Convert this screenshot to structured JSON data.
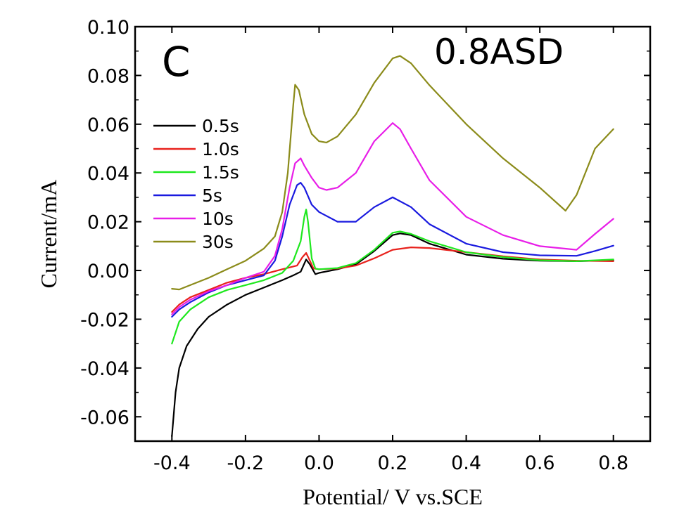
{
  "chart_data": {
    "type": "line",
    "panel_label": "C",
    "condition_label": "0.8ASD",
    "xlabel": "Potential/ V vs.SCE",
    "ylabel": "Current/mA",
    "xlim": [
      -0.5,
      0.9
    ],
    "ylim": [
      -0.07,
      0.1
    ],
    "xticks": [
      -0.4,
      -0.2,
      0.0,
      0.2,
      0.4,
      0.6,
      0.8
    ],
    "xtick_labels": [
      "-0.4",
      "-0.2",
      "0.0",
      "0.2",
      "0.4",
      "0.6",
      "0.8"
    ],
    "yticks": [
      -0.06,
      -0.04,
      -0.02,
      0.0,
      0.02,
      0.04,
      0.06,
      0.08,
      0.1
    ],
    "ytick_labels": [
      "-0.06",
      "-0.04",
      "-0.02",
      "0.00",
      "0.02",
      "0.04",
      "0.06",
      "0.08",
      "0.10"
    ],
    "legend_position": "left",
    "series": [
      {
        "name": "0.5s",
        "color": "#000000",
        "x": [
          -0.4,
          -0.39,
          -0.38,
          -0.36,
          -0.33,
          -0.3,
          -0.25,
          -0.2,
          -0.15,
          -0.1,
          -0.07,
          -0.05,
          -0.035,
          -0.025,
          -0.01,
          0.0,
          0.05,
          0.1,
          0.15,
          0.2,
          0.22,
          0.25,
          0.3,
          0.4,
          0.5,
          0.6,
          0.7,
          0.8
        ],
        "y": [
          -0.068,
          -0.05,
          -0.04,
          -0.031,
          -0.024,
          -0.019,
          -0.014,
          -0.01,
          -0.007,
          -0.004,
          -0.002,
          -0.0005,
          0.0045,
          0.0025,
          -0.0015,
          -0.001,
          0.0005,
          0.0025,
          0.008,
          0.0145,
          0.0152,
          0.0145,
          0.011,
          0.0065,
          0.0048,
          0.004,
          0.0038,
          0.0042
        ]
      },
      {
        "name": "1.0s",
        "color": "#e8211c",
        "x": [
          -0.4,
          -0.38,
          -0.35,
          -0.3,
          -0.25,
          -0.2,
          -0.15,
          -0.1,
          -0.06,
          -0.045,
          -0.035,
          -0.025,
          -0.015,
          0.0,
          0.05,
          0.1,
          0.15,
          0.2,
          0.25,
          0.3,
          0.4,
          0.5,
          0.6,
          0.7,
          0.8
        ],
        "y": [
          -0.017,
          -0.014,
          -0.011,
          -0.008,
          -0.005,
          -0.003,
          -0.0015,
          0.0005,
          0.002,
          0.0055,
          0.0072,
          0.004,
          0.0008,
          0.0005,
          0.0008,
          0.002,
          0.005,
          0.0085,
          0.0095,
          0.0092,
          0.0075,
          0.0058,
          0.0045,
          0.004,
          0.0038
        ]
      },
      {
        "name": "1.5s",
        "color": "#1ee81e",
        "x": [
          -0.4,
          -0.38,
          -0.35,
          -0.3,
          -0.25,
          -0.2,
          -0.15,
          -0.1,
          -0.07,
          -0.05,
          -0.04,
          -0.035,
          -0.03,
          -0.02,
          -0.01,
          0.0,
          0.05,
          0.1,
          0.15,
          0.2,
          0.22,
          0.25,
          0.3,
          0.4,
          0.5,
          0.6,
          0.7,
          0.8
        ],
        "y": [
          -0.03,
          -0.021,
          -0.016,
          -0.011,
          -0.008,
          -0.006,
          -0.004,
          -0.001,
          0.004,
          0.012,
          0.022,
          0.025,
          0.02,
          0.005,
          0.0008,
          0.0005,
          0.001,
          0.003,
          0.0085,
          0.0155,
          0.016,
          0.015,
          0.012,
          0.0075,
          0.0055,
          0.0042,
          0.0038,
          0.0045
        ]
      },
      {
        "name": "5s",
        "color": "#1a1adf",
        "x": [
          -0.4,
          -0.38,
          -0.35,
          -0.3,
          -0.25,
          -0.2,
          -0.15,
          -0.12,
          -0.1,
          -0.08,
          -0.06,
          -0.05,
          -0.04,
          -0.02,
          0.0,
          0.05,
          0.1,
          0.15,
          0.2,
          0.25,
          0.3,
          0.4,
          0.5,
          0.6,
          0.7,
          0.75,
          0.8
        ],
        "y": [
          -0.019,
          -0.016,
          -0.013,
          -0.009,
          -0.006,
          -0.004,
          -0.002,
          0.004,
          0.014,
          0.027,
          0.035,
          0.036,
          0.034,
          0.027,
          0.024,
          0.02,
          0.02,
          0.026,
          0.03,
          0.026,
          0.019,
          0.011,
          0.0075,
          0.0062,
          0.006,
          0.008,
          0.0102
        ]
      },
      {
        "name": "10s",
        "color": "#e81ee8",
        "x": [
          -0.4,
          -0.38,
          -0.35,
          -0.3,
          -0.25,
          -0.2,
          -0.15,
          -0.12,
          -0.1,
          -0.08,
          -0.065,
          -0.05,
          -0.04,
          -0.02,
          0.0,
          0.02,
          0.05,
          0.1,
          0.15,
          0.2,
          0.22,
          0.25,
          0.3,
          0.4,
          0.5,
          0.6,
          0.7,
          0.75,
          0.8
        ],
        "y": [
          -0.018,
          -0.015,
          -0.012,
          -0.0085,
          -0.006,
          -0.003,
          -0.0005,
          0.006,
          0.017,
          0.034,
          0.044,
          0.046,
          0.043,
          0.038,
          0.034,
          0.033,
          0.034,
          0.04,
          0.053,
          0.0605,
          0.058,
          0.05,
          0.037,
          0.022,
          0.0145,
          0.01,
          0.0085,
          0.015,
          0.0212
        ]
      },
      {
        "name": "30s",
        "color": "#8b8b1a",
        "x": [
          -0.4,
          -0.38,
          -0.35,
          -0.3,
          -0.25,
          -0.2,
          -0.15,
          -0.12,
          -0.1,
          -0.085,
          -0.07,
          -0.065,
          -0.055,
          -0.04,
          -0.02,
          0.0,
          0.02,
          0.05,
          0.1,
          0.15,
          0.2,
          0.22,
          0.25,
          0.3,
          0.4,
          0.5,
          0.6,
          0.67,
          0.7,
          0.75,
          0.8
        ],
        "y": [
          -0.0075,
          -0.0078,
          -0.006,
          -0.003,
          0.0005,
          0.004,
          0.009,
          0.014,
          0.024,
          0.04,
          0.068,
          0.0762,
          0.074,
          0.064,
          0.056,
          0.053,
          0.0525,
          0.055,
          0.064,
          0.077,
          0.087,
          0.088,
          0.085,
          0.076,
          0.06,
          0.046,
          0.034,
          0.0245,
          0.031,
          0.05,
          0.058
        ]
      }
    ]
  }
}
